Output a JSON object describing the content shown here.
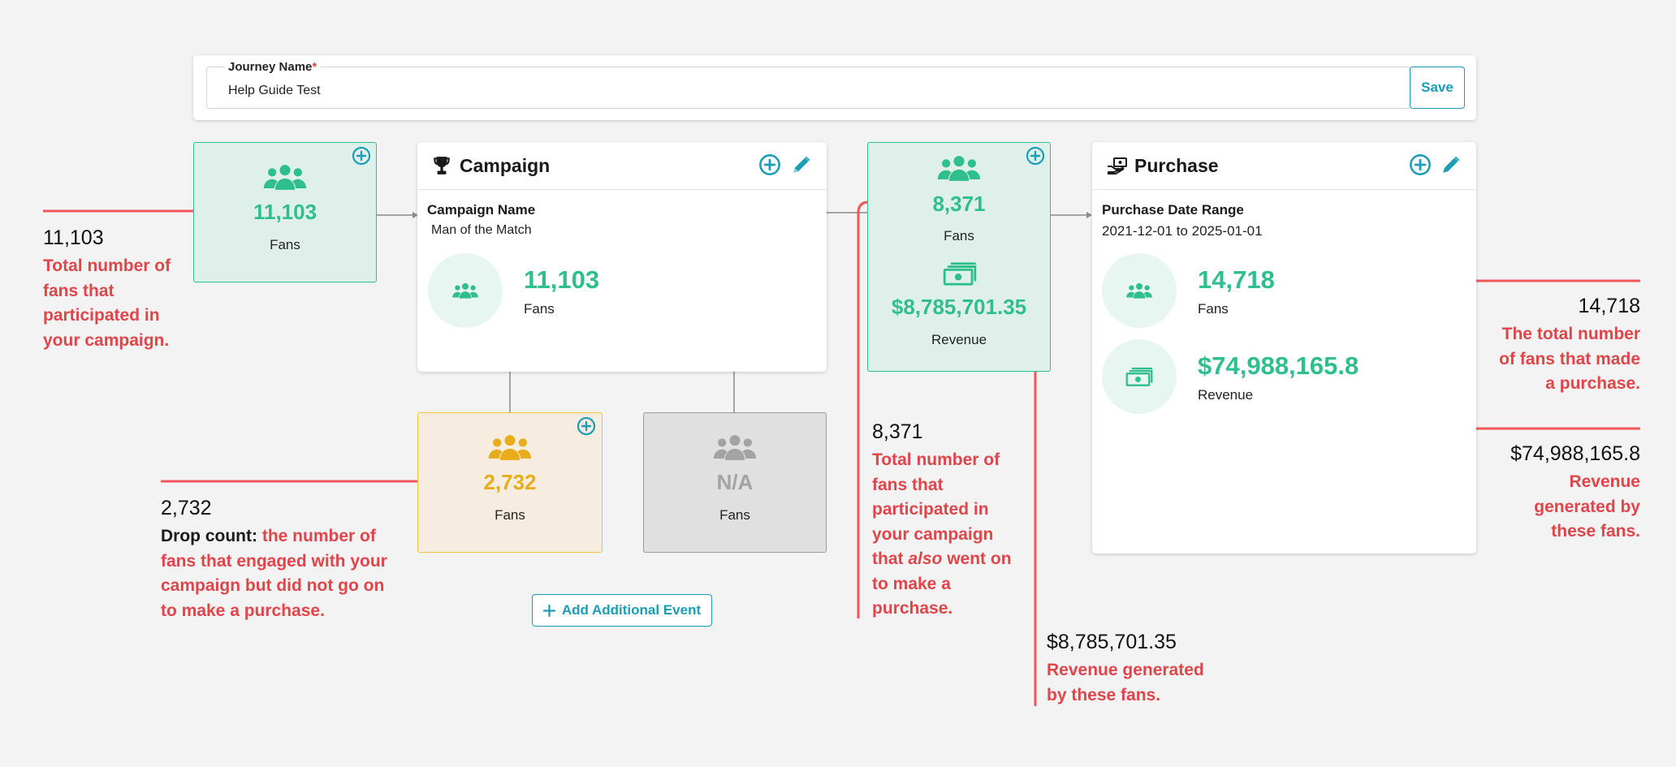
{
  "journey": {
    "label": "Journey Name",
    "required_mark": "*",
    "value": "Help Guide Test",
    "save_label": "Save"
  },
  "entry_box": {
    "count": "11,103",
    "label": "Fans"
  },
  "campaign": {
    "title": "Campaign",
    "field_label": "Campaign Name",
    "field_value": "Man of the Match",
    "fans_value": "11,103",
    "fans_label": "Fans"
  },
  "drop_box": {
    "count": "2,732",
    "label": "Fans"
  },
  "na_box": {
    "count": "N/A",
    "label": "Fans"
  },
  "add_event_label": "Add Additional Event",
  "converted_box": {
    "count": "8,371",
    "count_label": "Fans",
    "revenue": "$8,785,701.35",
    "revenue_label": "Revenue"
  },
  "purchase": {
    "title": "Purchase",
    "field_label": "Purchase Date Range",
    "date_from": "2021-12-01",
    "date_sep": "to",
    "date_to": "2025-01-01",
    "fans_value": "14,718",
    "fans_label": "Fans",
    "revenue_value": "$74,988,165.8",
    "revenue_label": "Revenue"
  },
  "annotations": {
    "entry": {
      "number": "11,103",
      "text": [
        "Total number of",
        "fans that",
        "participated in",
        "your campaign."
      ]
    },
    "drop": {
      "number": "2,732",
      "lead": "Drop count:",
      "text_first": "the number of",
      "text": [
        "fans that engaged with your",
        "campaign but did not go on",
        "to make a purchase."
      ]
    },
    "converted": {
      "number": "8,371",
      "text": [
        "Total number of",
        "fans that",
        "participated in",
        "your campaign"
      ],
      "that": "that",
      "also": "also",
      "went_on": "went on",
      "text_end": [
        "to make a",
        "purchase."
      ]
    },
    "converted_revenue": {
      "number": "$8,785,701.35",
      "text": [
        "Revenue generated",
        "by these fans."
      ]
    },
    "purchase_fans": {
      "number": "14,718",
      "text": [
        "The total number",
        "of fans that made",
        "a purchase."
      ]
    },
    "purchase_revenue": {
      "number": "$74,988,165.8",
      "text": [
        "Revenue",
        "generated by",
        "these fans."
      ]
    }
  },
  "colors": {
    "accent": "#1a9db5",
    "green": "#2fbf8c",
    "yellow": "#e7ad1a",
    "annotation_red": "#e0454a",
    "background": "#f3f3f3"
  },
  "icons": [
    "fans-group-icon",
    "trophy-icon",
    "hand-money-icon",
    "money-icon",
    "add-circle-icon",
    "pencil-icon",
    "plus-icon"
  ]
}
